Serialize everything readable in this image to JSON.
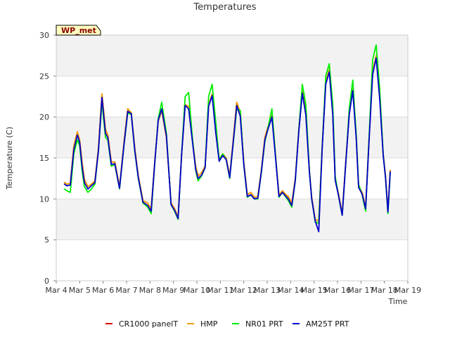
{
  "chart_data": {
    "type": "line",
    "title": "Temperatures",
    "xlabel": "Time",
    "ylabel": "Temperature (C)",
    "station_tag": "WP_met",
    "xlim": [
      0,
      15
    ],
    "ylim": [
      0,
      30
    ],
    "x_tick_labels": [
      "Mar 4",
      "Mar 5",
      "Mar 6",
      "Mar 7",
      "Mar 8",
      "Mar 9",
      "Mar 10",
      "Mar 11",
      "Mar 12",
      "Mar 13",
      "Mar 14",
      "Mar 15",
      "Mar 16",
      "Mar 17",
      "Mar 18",
      "Mar 19"
    ],
    "y_ticks": [
      0,
      5,
      10,
      15,
      20,
      25,
      30
    ],
    "grid": "horizontal bands",
    "legend_position": "bottom-center",
    "series": [
      {
        "name": "CR1000 panelT",
        "color": "#dd0000",
        "offset": 0.3,
        "x": [
          0.35,
          0.45,
          0.6,
          0.75,
          0.9,
          1.0,
          1.1,
          1.2,
          1.35,
          1.5,
          1.65,
          1.8,
          1.95,
          2.1,
          2.2,
          2.35,
          2.5,
          2.7,
          2.9,
          3.05,
          3.2,
          3.35,
          3.5,
          3.7,
          3.9,
          4.05,
          4.2,
          4.35,
          4.5,
          4.7,
          4.9,
          5.05,
          5.2,
          5.35,
          5.5,
          5.65,
          5.8,
          5.95,
          6.05,
          6.2,
          6.35,
          6.5,
          6.65,
          6.8,
          6.95,
          7.1,
          7.25,
          7.4,
          7.55,
          7.7,
          7.85,
          8.0,
          8.15,
          8.3,
          8.45,
          8.6,
          8.75,
          8.9,
          9.0,
          9.2,
          9.35,
          9.5,
          9.65,
          9.8,
          9.9,
          10.05,
          10.2,
          10.35,
          10.5,
          10.65,
          10.8,
          10.9,
          11.05,
          11.2,
          11.35,
          11.5,
          11.65,
          11.8,
          11.9,
          12.05,
          12.2,
          12.35,
          12.5,
          12.65,
          12.8,
          12.9,
          13.05,
          13.2,
          13.35,
          13.5,
          13.65,
          13.8,
          13.95,
          14.05,
          14.15,
          14.25
        ],
        "y": [
          12,
          11.8,
          11.9,
          16.5,
          18.2,
          17.2,
          14.5,
          12.4,
          11.5,
          11.8,
          12.2,
          16.2,
          22.8,
          18.5,
          17.8,
          14.5,
          14.5,
          11.5,
          17.2,
          21,
          20.5,
          16.2,
          12.8,
          9.8,
          9.5,
          8.8,
          14.5,
          19.5,
          20.8,
          17.5,
          9.5,
          8.8,
          7.8,
          15.5,
          21.5,
          21.3,
          17.5,
          14,
          12.8,
          13.2,
          14,
          21.5,
          22.8,
          18.5,
          14.8,
          15.5,
          15,
          12.8,
          17.2,
          21.8,
          20.5,
          14.5,
          10.5,
          10.8,
          10.2,
          10.3,
          13.5,
          17.5,
          18.5,
          20.2,
          15.5,
          10.5,
          11,
          10.5,
          10.3,
          9.5,
          12.5,
          18.5,
          23.2,
          20.5,
          13.5,
          10.2,
          7.5,
          7.3,
          16.5,
          24.3,
          25.8,
          20.5,
          12.5,
          10.5,
          8.2,
          14.5,
          20.5,
          23.5,
          17.5,
          11.5,
          10.8,
          9.0,
          17.5,
          25.5,
          27.5,
          22.5,
          15.5,
          12.8,
          8.5,
          13.5
        ]
      },
      {
        "name": "HMP",
        "color": "#f0a000",
        "offset": -0.5,
        "x": [
          0.35,
          0.45,
          0.6,
          0.75,
          0.9,
          1.0,
          1.1,
          1.2,
          1.35,
          1.5,
          1.65,
          1.8,
          1.95,
          2.1,
          2.2,
          2.35,
          2.5,
          2.7,
          2.9,
          3.05,
          3.2,
          3.35,
          3.5,
          3.7,
          3.9,
          4.05,
          4.2,
          4.35,
          4.5,
          4.7,
          4.9,
          5.05,
          5.2,
          5.35,
          5.5,
          5.65,
          5.8,
          5.95,
          6.05,
          6.2,
          6.35,
          6.5,
          6.65,
          6.8,
          6.95,
          7.1,
          7.25,
          7.4,
          7.55,
          7.7,
          7.85,
          8.0,
          8.15,
          8.3,
          8.45,
          8.6,
          8.75,
          8.9,
          9.0,
          9.2,
          9.35,
          9.5,
          9.65,
          9.8,
          9.9,
          10.05,
          10.2,
          10.35,
          10.5,
          10.65,
          10.8,
          10.9,
          11.05,
          11.2,
          11.35,
          11.5,
          11.65,
          11.8,
          11.9,
          12.05,
          12.2,
          12.35,
          12.5,
          12.65,
          12.8,
          12.9,
          13.05,
          13.2,
          13.35,
          13.5,
          13.65,
          13.8,
          13.95,
          14.05,
          14.15,
          14.25
        ],
        "y": [
          12,
          11.8,
          11.9,
          16.5,
          18.2,
          17.2,
          14.5,
          12.4,
          11.5,
          11.8,
          12.2,
          16.2,
          22.8,
          18.5,
          17.8,
          14.5,
          14.5,
          11.5,
          17.2,
          21,
          20.5,
          16.2,
          12.8,
          9.8,
          9.5,
          8.8,
          14.5,
          19.5,
          20.8,
          17.5,
          9.5,
          8.8,
          7.8,
          15.5,
          21.5,
          21.3,
          17.5,
          14,
          12.8,
          13.2,
          14,
          21.5,
          22.8,
          18.5,
          14.8,
          15.5,
          15,
          12.8,
          17.2,
          21.8,
          20.5,
          14.5,
          10.5,
          10.8,
          10.2,
          10.3,
          13.5,
          17.5,
          18.5,
          20.2,
          15.5,
          10.5,
          11,
          10.5,
          10.3,
          9.5,
          12.5,
          18.5,
          23.2,
          20.5,
          13.5,
          10.2,
          7.5,
          7.3,
          16.5,
          24.3,
          25.8,
          20.5,
          12.5,
          10.5,
          8.2,
          14.5,
          20.5,
          23.5,
          17.5,
          11.5,
          10.8,
          9.0,
          17.5,
          25.5,
          27.5,
          22.5,
          15.5,
          12.8,
          8.5,
          13.5
        ]
      },
      {
        "name": "NR01 PRT",
        "color": "#00ee00",
        "offset": 0.6,
        "x": [
          0.35,
          0.45,
          0.6,
          0.75,
          0.9,
          1.0,
          1.1,
          1.2,
          1.35,
          1.5,
          1.65,
          1.8,
          1.95,
          2.1,
          2.2,
          2.35,
          2.5,
          2.7,
          2.9,
          3.05,
          3.2,
          3.35,
          3.5,
          3.7,
          3.9,
          4.05,
          4.2,
          4.35,
          4.5,
          4.7,
          4.9,
          5.05,
          5.2,
          5.35,
          5.5,
          5.65,
          5.8,
          5.95,
          6.05,
          6.2,
          6.35,
          6.5,
          6.65,
          6.8,
          6.95,
          7.1,
          7.25,
          7.4,
          7.55,
          7.7,
          7.85,
          8.0,
          8.15,
          8.3,
          8.45,
          8.6,
          8.75,
          8.9,
          9.0,
          9.2,
          9.35,
          9.5,
          9.65,
          9.8,
          9.9,
          10.05,
          10.2,
          10.35,
          10.5,
          10.65,
          10.8,
          10.9,
          11.05,
          11.2,
          11.35,
          11.5,
          11.65,
          11.8,
          11.9,
          12.05,
          12.2,
          12.35,
          12.5,
          12.65,
          12.8,
          12.9,
          13.05,
          13.2,
          13.35,
          13.5,
          13.65,
          13.8,
          13.95,
          14.05,
          14.15,
          14.25
        ],
        "y": [
          11.2,
          11,
          10.8,
          15.5,
          17.2,
          16.5,
          13.5,
          11.5,
          10.8,
          11.2,
          11.8,
          15.8,
          21.8,
          17.5,
          17.2,
          14.0,
          14.2,
          11.2,
          16.8,
          20.5,
          20.3,
          15.8,
          12.5,
          9.5,
          9.0,
          8.2,
          14.2,
          19.8,
          21.8,
          18.0,
          9.3,
          8.5,
          7.5,
          15.5,
          22.5,
          23.0,
          17.8,
          13.5,
          12.2,
          12.8,
          13.8,
          22.5,
          24.0,
          19.5,
          14.8,
          15.5,
          14.8,
          12.5,
          16.8,
          21.0,
          20.8,
          14.2,
          10.2,
          10.5,
          10.0,
          10.0,
          13.2,
          17.0,
          18.2,
          21.0,
          15.5,
          10.2,
          10.8,
          10.2,
          9.8,
          9.0,
          12.2,
          18.5,
          24.0,
          21.5,
          13.5,
          10.0,
          7.2,
          7.0,
          16.5,
          25.0,
          26.5,
          21.5,
          12.8,
          10.2,
          8.0,
          14.2,
          21.0,
          24.5,
          17.8,
          11.8,
          10.5,
          8.5,
          17.8,
          27.0,
          28.8,
          23.5,
          15.5,
          12.5,
          8.2,
          13.2
        ]
      },
      {
        "name": "AM25T PRT",
        "color": "#0000cc",
        "offset": 0.0,
        "x": [
          0.35,
          0.45,
          0.6,
          0.75,
          0.9,
          1.0,
          1.1,
          1.2,
          1.35,
          1.5,
          1.65,
          1.8,
          1.95,
          2.1,
          2.2,
          2.35,
          2.5,
          2.7,
          2.9,
          3.05,
          3.2,
          3.35,
          3.5,
          3.7,
          3.9,
          4.05,
          4.2,
          4.35,
          4.5,
          4.7,
          4.9,
          5.05,
          5.2,
          5.35,
          5.5,
          5.65,
          5.8,
          5.95,
          6.05,
          6.2,
          6.35,
          6.5,
          6.65,
          6.8,
          6.95,
          7.1,
          7.25,
          7.4,
          7.55,
          7.7,
          7.85,
          8.0,
          8.15,
          8.3,
          8.45,
          8.6,
          8.75,
          8.9,
          9.0,
          9.2,
          9.35,
          9.5,
          9.65,
          9.8,
          9.9,
          10.05,
          10.2,
          10.35,
          10.5,
          10.65,
          10.8,
          10.9,
          11.05,
          11.2,
          11.35,
          11.5,
          11.65,
          11.8,
          11.9,
          12.05,
          12.2,
          12.35,
          12.5,
          12.65,
          12.8,
          12.9,
          13.05,
          13.2,
          13.35,
          13.5,
          13.65,
          13.8,
          13.95,
          14.05,
          14.15,
          14.25
        ],
        "y": [
          11.8,
          11.6,
          11.7,
          16.0,
          17.8,
          16.9,
          14.0,
          12.0,
          11.2,
          11.6,
          12.0,
          15.9,
          22.4,
          18.0,
          17.5,
          14.2,
          14.3,
          11.3,
          16.9,
          20.7,
          20.4,
          15.9,
          12.6,
          9.6,
          9.2,
          8.5,
          14.3,
          19.6,
          21.0,
          17.7,
          9.3,
          8.6,
          7.6,
          15.4,
          21.4,
          21.0,
          17.3,
          13.6,
          12.5,
          12.9,
          13.8,
          21.3,
          22.6,
          18.2,
          14.6,
          15.3,
          14.8,
          12.6,
          16.9,
          21.4,
          20.1,
          14.2,
          10.3,
          10.5,
          10.0,
          10.1,
          13.3,
          17.2,
          18.2,
          20.0,
          15.2,
          10.3,
          10.8,
          10.3,
          10.0,
          9.2,
          12.3,
          18.3,
          22.9,
          20.2,
          13.3,
          10.0,
          7.3,
          6.0,
          16.3,
          24.0,
          25.5,
          20.2,
          12.3,
          10.3,
          8.0,
          14.3,
          20.3,
          23.2,
          17.3,
          11.4,
          10.6,
          8.8,
          17.3,
          25.2,
          27.2,
          22.2,
          15.3,
          12.6,
          8.4,
          13.3
        ]
      }
    ]
  }
}
